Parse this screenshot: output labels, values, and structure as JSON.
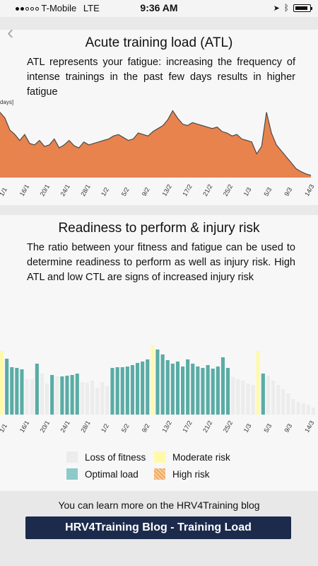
{
  "status_bar": {
    "carrier": "T-Mobile",
    "network": "LTE",
    "time": "9:36 AM"
  },
  "atl": {
    "title": "Acute training load (ATL)",
    "description": "ATL represents your fatigue: increasing the frequency of intense trainings in the past few days results in higher fatigue",
    "axis_fragment": "days]"
  },
  "readiness": {
    "title": "Readiness to perform & injury risk",
    "description": "The ratio between your fitness and fatigue can be used to determine readiness to perform as well as injury risk. High ATL and low CTL are signs of increased injury risk"
  },
  "legend": {
    "loss_of_fitness": "Loss of fitness",
    "moderate_risk": "Moderate risk",
    "optimal_load": "Optimal load",
    "high_risk": "High risk"
  },
  "colors": {
    "atl_fill": "#e8834e",
    "atl_line": "#4a4a4a",
    "optimal": "#5aaca6",
    "moderate": "#fffaaa",
    "loss": "#ececec",
    "high": "#f0a860",
    "button_bg": "#1c2b4c"
  },
  "footer": {
    "text": "You can learn more on the HRV4Training blog",
    "button_label": "HRV4Training Blog - Training Load"
  },
  "chart_data": [
    {
      "type": "area",
      "x_ticks": [
        "1/1",
        "16/1",
        "20/1",
        "24/1",
        "28/1",
        "1/2",
        "5/2",
        "9/2",
        "13/2",
        "17/2",
        "21/2",
        "25/2",
        "1/3",
        "5/3",
        "9/3",
        "14/3"
      ],
      "values": [
        88,
        80,
        64,
        58,
        50,
        58,
        46,
        44,
        50,
        42,
        44,
        52,
        40,
        44,
        50,
        43,
        40,
        48,
        44,
        46,
        48,
        50,
        52,
        56,
        58,
        54,
        50,
        52,
        60,
        58,
        56,
        62,
        66,
        70,
        78,
        90,
        80,
        72,
        70,
        74,
        72,
        70,
        68,
        66,
        68,
        62,
        60,
        56,
        58,
        52,
        50,
        48,
        32,
        42,
        88,
        60,
        44,
        36,
        28,
        20,
        12,
        8,
        5,
        3
      ],
      "ylim": [
        0,
        100
      ]
    },
    {
      "type": "bar",
      "x_ticks": [
        "1/1",
        "16/1",
        "20/1",
        "24/1",
        "28/1",
        "1/2",
        "5/2",
        "9/2",
        "13/2",
        "17/2",
        "21/2",
        "25/2",
        "1/3",
        "5/3",
        "9/3",
        "14/3"
      ],
      "values": [
        90,
        79,
        67,
        66,
        64,
        50,
        50,
        72,
        58,
        44,
        56,
        54,
        54,
        55,
        56,
        58,
        46,
        45,
        48,
        38,
        46,
        40,
        66,
        67,
        67,
        68,
        70,
        73,
        75,
        78,
        98,
        92,
        85,
        77,
        72,
        75,
        68,
        78,
        72,
        68,
        66,
        70,
        65,
        68,
        81,
        66,
        53,
        50,
        48,
        44,
        42,
        90,
        58,
        55,
        48,
        42,
        36,
        30,
        22,
        18,
        16,
        14,
        10
      ],
      "categories_state": [
        "moderate",
        "optimal",
        "optimal",
        "optimal",
        "optimal",
        "loss",
        "loss",
        "optimal",
        "loss",
        "loss",
        "optimal",
        "loss",
        "optimal",
        "optimal",
        "optimal",
        "optimal",
        "loss",
        "loss",
        "loss",
        "loss",
        "loss",
        "loss",
        "optimal",
        "optimal",
        "optimal",
        "optimal",
        "optimal",
        "optimal",
        "optimal",
        "optimal",
        "moderate",
        "optimal",
        "optimal",
        "optimal",
        "optimal",
        "optimal",
        "optimal",
        "optimal",
        "optimal",
        "optimal",
        "optimal",
        "optimal",
        "optimal",
        "optimal",
        "optimal",
        "optimal",
        "loss",
        "loss",
        "loss",
        "loss",
        "loss",
        "moderate",
        "optimal",
        "loss",
        "loss",
        "loss",
        "loss",
        "loss",
        "loss",
        "loss",
        "loss",
        "loss",
        "loss"
      ],
      "ylim": [
        0,
        100
      ]
    }
  ]
}
